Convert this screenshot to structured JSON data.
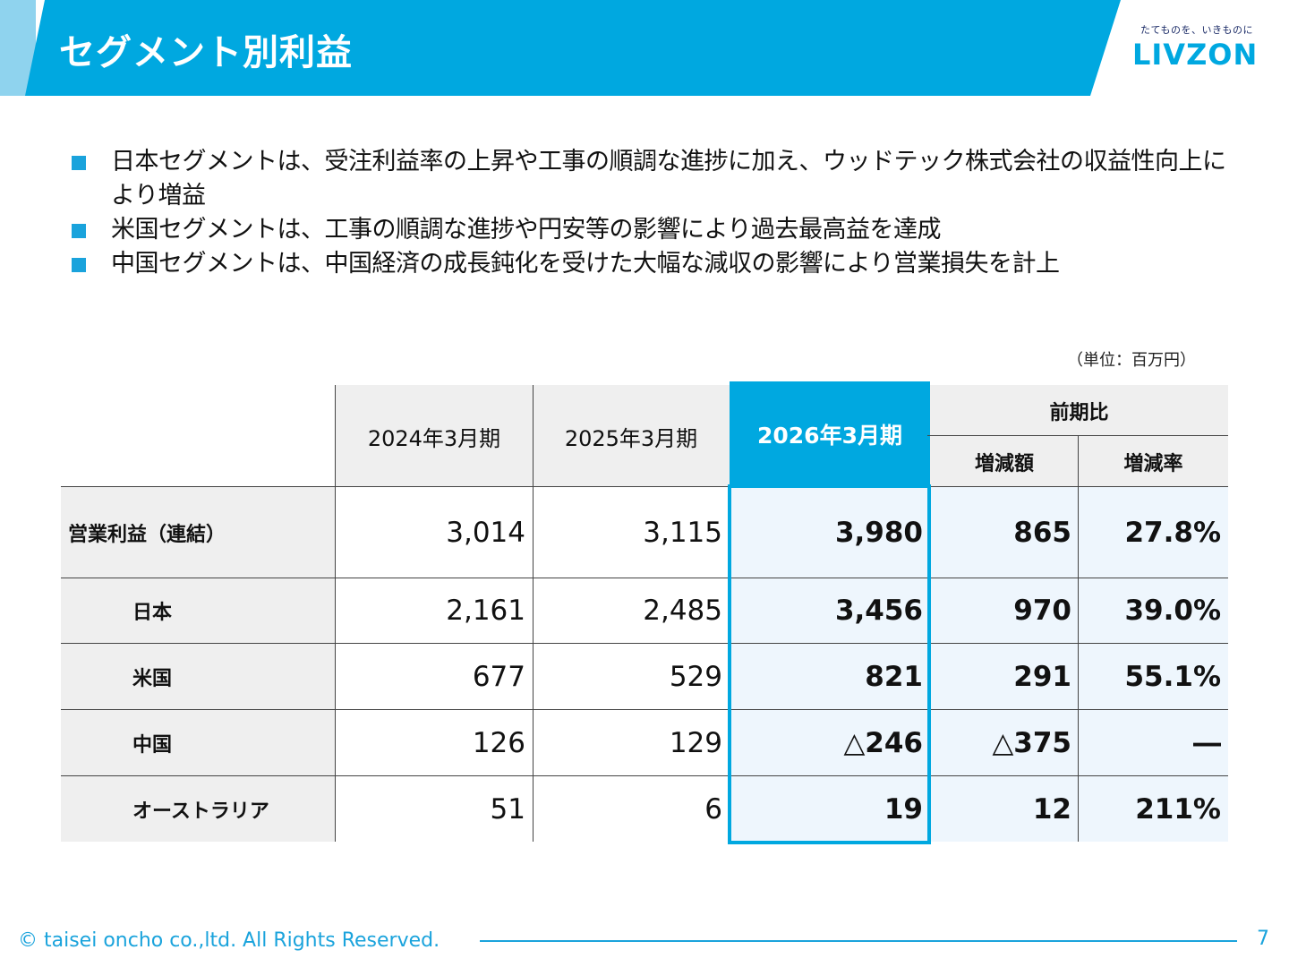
{
  "header": {
    "title": "セグメント別利益",
    "logo_tagline": "たてものを、いきものに",
    "logo_name": "LIVZON"
  },
  "bullets": [
    "日本セグメントは、受注利益率の上昇や工事の順調な進捗に加え、ウッドテック株式会社の収益性向上により増益",
    "米国セグメントは、工事の順調な進捗や円安等の影響により過去最高益を達成",
    "中国セグメントは、中国経済の成長鈍化を受けた大幅な減収の影響により営業損失を計上"
  ],
  "unit": "（単位：百万円）",
  "table": {
    "col_headers": {
      "y2024": "2024年3月期",
      "y2025": "2025年3月期",
      "y2026": "2026年3月期",
      "yoy": "前期比",
      "diff": "増減額",
      "rate": "増減率"
    },
    "rows": [
      {
        "label": "営業利益（連結）",
        "y2024": "3,014",
        "y2025": "3,115",
        "y2026": "3,980",
        "diff": "865",
        "rate": "27.8%"
      },
      {
        "label": "日本",
        "y2024": "2,161",
        "y2025": "2,485",
        "y2026": "3,456",
        "diff": "970",
        "rate": "39.0%"
      },
      {
        "label": "米国",
        "y2024": "677",
        "y2025": "529",
        "y2026": "821",
        "diff": "291",
        "rate": "55.1%"
      },
      {
        "label": "中国",
        "y2024": "126",
        "y2025": "129",
        "y2026": "△246",
        "diff": "△375",
        "rate": "―"
      },
      {
        "label": "オーストラリア",
        "y2024": "51",
        "y2025": "6",
        "y2026": "19",
        "diff": "12",
        "rate": "211%"
      }
    ]
  },
  "footer": {
    "copyright": "© taisei oncho co.,ltd. All Rights Reserved.",
    "page": "7"
  },
  "colors": {
    "accent": "#00a8e0",
    "accent_light": "#8fd3ee",
    "header_cell_gray": "#efefef",
    "highlight_column_bg": "#eef6fd"
  }
}
